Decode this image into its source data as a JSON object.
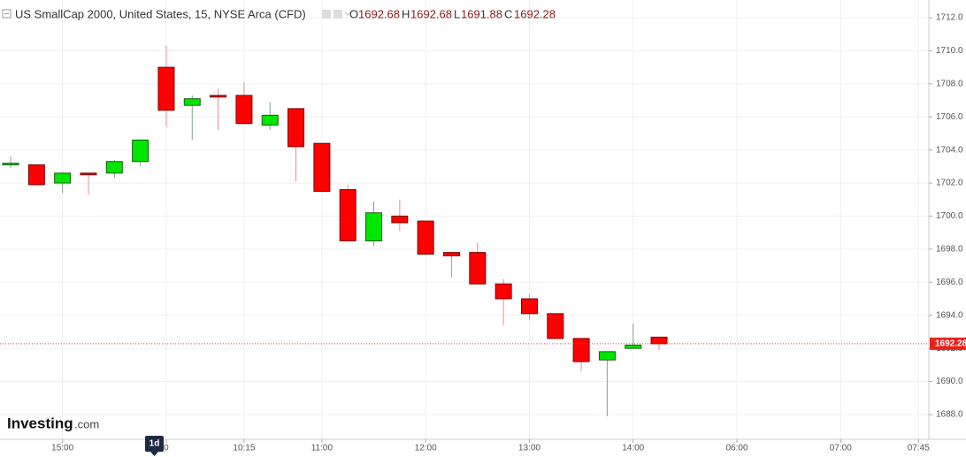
{
  "chart_data": {
    "type": "candlestick",
    "title": "US SmallCap 2000, United States, 15, NYSE Arca (CFD)",
    "header": {
      "open_label": "O",
      "open": 1692.68,
      "high_label": "H",
      "high": 1692.68,
      "low_label": "L",
      "low": 1691.88,
      "close_label": "C",
      "close": 1692.28
    },
    "last_price": 1692.28,
    "interval_marker": "1d",
    "logo": {
      "brand": "Investing",
      "suffix": ".com"
    },
    "series": {
      "open": [
        1703.1,
        1703.1,
        1702.0,
        1702.6,
        1702.6,
        1703.3,
        1709.0,
        1706.7,
        1707.3,
        1707.3,
        1705.5,
        1706.5,
        1704.4,
        1701.6,
        1698.5,
        1700.0,
        1699.7,
        1697.8,
        1697.8,
        1695.9,
        1695.0,
        1694.1,
        1692.6,
        1691.3,
        1692.0,
        1692.68
      ],
      "high": [
        1703.6,
        1703.1,
        1702.6,
        1702.6,
        1703.4,
        1704.6,
        1710.3,
        1707.3,
        1707.7,
        1708.1,
        1706.9,
        1706.5,
        1704.4,
        1701.9,
        1700.9,
        1701.0,
        1699.7,
        1697.8,
        1698.4,
        1696.2,
        1695.3,
        1694.1,
        1692.6,
        1691.8,
        1693.5,
        1692.68
      ],
      "low": [
        1702.9,
        1701.9,
        1701.4,
        1701.3,
        1702.3,
        1703.0,
        1705.4,
        1704.6,
        1705.2,
        1705.6,
        1705.2,
        1702.1,
        1701.5,
        1698.5,
        1698.2,
        1699.1,
        1697.6,
        1696.3,
        1695.9,
        1693.4,
        1693.7,
        1692.6,
        1690.6,
        1687.9,
        1692.0,
        1691.88
      ],
      "close": [
        1703.2,
        1701.9,
        1702.6,
        1702.5,
        1703.3,
        1704.6,
        1706.4,
        1707.1,
        1707.2,
        1705.6,
        1706.1,
        1704.2,
        1701.5,
        1698.5,
        1700.2,
        1699.6,
        1697.7,
        1697.6,
        1695.9,
        1695.0,
        1694.1,
        1692.6,
        1691.2,
        1691.8,
        1692.2,
        1692.28
      ]
    },
    "up_color": "#00e600",
    "down_color": "#ff0000",
    "xlim": [
      -0.41,
      35.4
    ],
    "xticks": [
      {
        "value": 2,
        "label": "15:00"
      },
      {
        "value": 6,
        "label": "0"
      },
      {
        "value": 9,
        "label": "10:15"
      },
      {
        "value": 12,
        "label": "11:00"
      },
      {
        "value": 16,
        "label": "12:00"
      },
      {
        "value": 20,
        "label": "13:00"
      },
      {
        "value": 24,
        "label": "14:00"
      },
      {
        "value": 28,
        "label": "06:00"
      },
      {
        "value": 32,
        "label": "07:00"
      },
      {
        "value": 35,
        "label": "07:45"
      }
    ],
    "ylim": [
      1686.5,
      1713.07
    ],
    "yticks": [
      {
        "value": 1688,
        "label": "1688.0"
      },
      {
        "value": 1690,
        "label": "1690.0"
      },
      {
        "value": 1692,
        "label": "1692.0"
      },
      {
        "value": 1694,
        "label": "1694.0"
      },
      {
        "value": 1696,
        "label": "1696.0"
      },
      {
        "value": 1698,
        "label": "1698.0"
      },
      {
        "value": 1700,
        "label": "1700.0"
      },
      {
        "value": 1702,
        "label": "1702.0"
      },
      {
        "value": 1704,
        "label": "1704.0"
      },
      {
        "value": 1706,
        "label": "1706.0"
      },
      {
        "value": 1708,
        "label": "1708.0"
      },
      {
        "value": 1710,
        "label": "1710.0"
      },
      {
        "value": 1712,
        "label": "1712.0"
      }
    ],
    "grid": true
  }
}
